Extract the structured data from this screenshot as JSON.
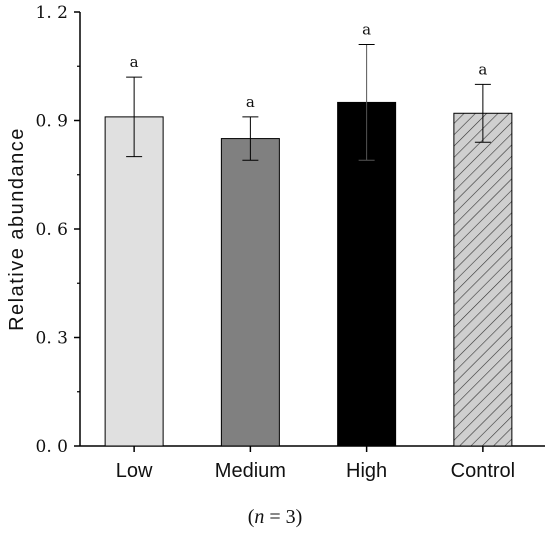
{
  "chart_data": {
    "type": "bar",
    "categories": [
      "Low",
      "Medium",
      "High",
      "Control"
    ],
    "values": [
      0.91,
      0.85,
      0.95,
      0.92
    ],
    "errors": [
      0.11,
      0.06,
      0.16,
      0.08
    ],
    "significance": [
      "a",
      "a",
      "a",
      "a"
    ],
    "bar_fills": [
      "#e0e0e0",
      "#808080",
      "#000000",
      "hatch"
    ],
    "ylabel": "Relative abundance",
    "xlabel": "",
    "ylim": [
      0,
      1.2
    ],
    "yticks": [
      0.0,
      0.3,
      0.6,
      0.9,
      1.2
    ],
    "ytick_labels": [
      "0. 0",
      "0. 3",
      "0. 6",
      "0. 9",
      "1. 2"
    ],
    "grid": false,
    "legend": "none"
  },
  "footnote": {
    "open": "(",
    "var": "n",
    "rest": " = 3)"
  }
}
